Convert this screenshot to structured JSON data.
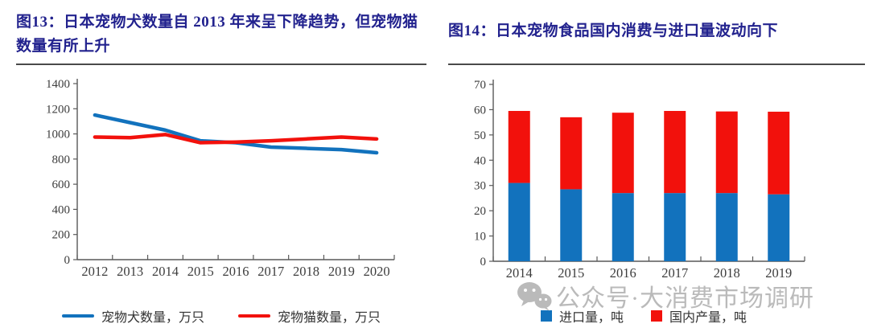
{
  "colors": {
    "title_navy": "#22228e",
    "series_blue": "#1272bd",
    "series_red": "#f2110c",
    "axis": "#595959",
    "tick_text": "#3d3d3d",
    "legend_text": "#333333",
    "watermark": "#aeaeae",
    "rule": "#4a4a4a"
  },
  "fig13": {
    "title": "图13：日本宠物犬数量自 2013 年来呈下降趋势，但宠物猫数量有所上升"
  },
  "fig14": {
    "title": "图14：日本宠物食品国内消费与进口量波动向下"
  },
  "watermark": {
    "icon": "wechat-icon",
    "text": "公众号·大消费市场调研"
  },
  "chart_data": [
    {
      "type": "line",
      "figure": "图13",
      "title": "日本宠物犬数量自 2013 年来呈下降趋势，但宠物猫数量有所上升",
      "x": [
        "2012",
        "2013",
        "2014",
        "2015",
        "2016",
        "2017",
        "2018",
        "2019",
        "2020"
      ],
      "series": [
        {
          "name": "宠物犬数量，万只",
          "color": "#1272bd",
          "values": [
            1150,
            1090,
            1030,
            945,
            930,
            895,
            885,
            875,
            850
          ]
        },
        {
          "name": "宠物猫数量，万只",
          "color": "#f2110c",
          "values": [
            975,
            970,
            995,
            930,
            935,
            945,
            960,
            975,
            960
          ]
        }
      ],
      "ylim": [
        0,
        1400
      ],
      "ytick_step": 200,
      "grid": false,
      "legend_position": "bottom"
    },
    {
      "type": "bar",
      "stacked": true,
      "figure": "图14",
      "title": "日本宠物食品国内消费与进口量波动向下",
      "categories": [
        "2014",
        "2015",
        "2016",
        "2017",
        "2018",
        "2019"
      ],
      "series": [
        {
          "name": "进口量，吨",
          "color": "#1272bd",
          "values": [
            31,
            28.5,
            27,
            27,
            27,
            26.5
          ]
        },
        {
          "name": "国内产量，吨",
          "color": "#f2110c",
          "values": [
            28.5,
            28.5,
            31.8,
            32.5,
            32.3,
            32.7
          ]
        }
      ],
      "ylim": [
        0,
        70
      ],
      "ytick_step": 10,
      "grid": false,
      "legend_position": "bottom"
    }
  ]
}
